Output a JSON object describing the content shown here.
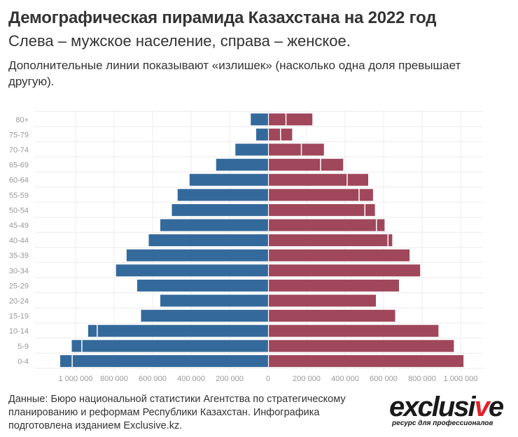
{
  "title": "Демографическая пирамида Казахстана на 2022 год",
  "subtitle": "Слева – мужское население, справа – женское.",
  "note": "Дополнительные линии показывают «излишек» (насколько одна доля превышает другую).",
  "footer": "Данные: Бюро национальной статистики Агентства по стратегическому планированию и реформам Республики Казахстан. Инфографика подготовлена изданием Exclusive.kz.",
  "logo": {
    "word_main": "exclusi",
    "word_accent": "v",
    "word_end": "e",
    "tagline": "ресурс для профессионалов"
  },
  "colors": {
    "male": "#346a9b",
    "female": "#a0475b",
    "male_excess": "#346a9b",
    "female_excess": "#a0475b"
  },
  "chart_data": {
    "type": "bar",
    "orientation": "horizontal-pyramid",
    "categories": [
      "80+",
      "75-79",
      "70-74",
      "65-69",
      "60-64",
      "55-59",
      "50-54",
      "45-49",
      "40-44",
      "35-39",
      "30-34",
      "25-29",
      "20-24",
      "15-19",
      "10-14",
      "5-9",
      "0-4"
    ],
    "series": [
      {
        "values": [
          90000,
          62000,
          170000,
          270000,
          408000,
          470000,
          500000,
          560000,
          620000,
          735000,
          790000,
          680000,
          565000,
          660000,
          935000,
          1020000,
          1080000
        ]
      },
      {
        "values": [
          230000,
          125000,
          290000,
          390000,
          520000,
          545000,
          555000,
          605000,
          645000,
          735000,
          795000,
          680000,
          560000,
          665000,
          885000,
          965000,
          1015000
        ]
      }
    ],
    "xlim": [
      -1100000,
      1100000
    ],
    "x_ticks": [
      -1000000,
      -800000,
      -600000,
      -400000,
      -200000,
      0,
      200000,
      400000,
      600000,
      800000,
      1000000
    ],
    "x_tick_labels": [
      "1 000 000",
      "800 000",
      "600 000",
      "400 000",
      "200 000",
      "0",
      "200 000",
      "400 000",
      "600 000",
      "800 000",
      "1 000 000"
    ],
    "grid": true
  }
}
